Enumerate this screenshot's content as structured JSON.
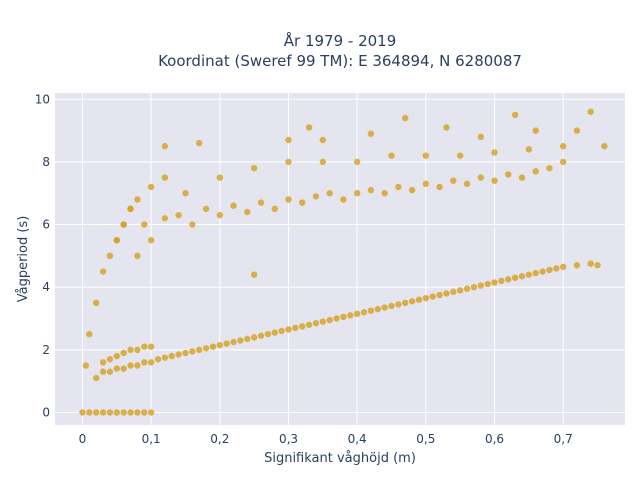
{
  "chart_data": {
    "type": "scatter",
    "title": "År 1979 - 2019",
    "subtitle": "Koordinat (Sweref 99 TM): E 364894, N 6280087",
    "xlabel": "Signifikant våghöjd (m)",
    "ylabel": "Vågperiod (s)",
    "xlim": [
      -0.04,
      0.79
    ],
    "ylim": [
      -0.4,
      10.2
    ],
    "x_ticks": [
      "0",
      "0,1",
      "0,2",
      "0,3",
      "0,4",
      "0,5",
      "0,6",
      "0,7"
    ],
    "x_tick_values": [
      0,
      0.1,
      0.2,
      0.3,
      0.4,
      0.5,
      0.6,
      0.7
    ],
    "y_ticks": [
      "0",
      "2",
      "4",
      "6",
      "8",
      "10"
    ],
    "y_tick_values": [
      0,
      2,
      4,
      6,
      8,
      10
    ],
    "grid": true,
    "colors": {
      "marker": "#d4a020",
      "plot_bg": "#e5e5f0",
      "grid": "#ffffff",
      "text": "#2a3f5f"
    },
    "series": [
      {
        "marker_color": "#d4a020",
        "x": [
          0,
          0.01,
          0.02,
          0.03,
          0.04,
          0.05,
          0.06,
          0.07,
          0.08,
          0.09,
          0.1,
          0.02,
          0.03,
          0.03,
          0.04,
          0.04,
          0.05,
          0.05,
          0.06,
          0.06,
          0.07,
          0.07,
          0.08,
          0.08,
          0.09,
          0.09,
          0.1,
          0.1,
          0.11,
          0.12,
          0.13,
          0.14,
          0.15,
          0.16,
          0.17,
          0.18,
          0.19,
          0.2,
          0.21,
          0.22,
          0.23,
          0.24,
          0.25,
          0.26,
          0.27,
          0.28,
          0.29,
          0.3,
          0.31,
          0.32,
          0.33,
          0.34,
          0.35,
          0.36,
          0.37,
          0.38,
          0.39,
          0.4,
          0.41,
          0.42,
          0.43,
          0.44,
          0.45,
          0.46,
          0.47,
          0.48,
          0.49,
          0.5,
          0.51,
          0.52,
          0.53,
          0.54,
          0.55,
          0.56,
          0.57,
          0.58,
          0.59,
          0.6,
          0.61,
          0.62,
          0.63,
          0.64,
          0.65,
          0.66,
          0.67,
          0.68,
          0.69,
          0.7,
          0.72,
          0.74,
          0.75,
          0.05,
          0.06,
          0.07,
          0.08,
          0.09,
          0.1,
          0.12,
          0.14,
          0.16,
          0.18,
          0.2,
          0.22,
          0.24,
          0.26,
          0.28,
          0.3,
          0.32,
          0.34,
          0.36,
          0.38,
          0.4,
          0.42,
          0.44,
          0.46,
          0.48,
          0.5,
          0.52,
          0.54,
          0.56,
          0.58,
          0.6,
          0.62,
          0.64,
          0.66,
          0.68,
          0.7,
          0.005,
          0.01,
          0.02,
          0.03,
          0.04,
          0.05,
          0.06,
          0.07,
          0.08,
          0.1,
          0.12,
          0.15,
          0.2,
          0.25,
          0.3,
          0.35,
          0.4,
          0.45,
          0.5,
          0.55,
          0.6,
          0.65,
          0.7,
          0.12,
          0.17,
          0.25,
          0.3,
          0.33,
          0.42,
          0.47,
          0.53,
          0.58,
          0.63,
          0.66,
          0.72,
          0.74,
          0.76,
          0.35
        ],
        "y": [
          0,
          0,
          0,
          0,
          0,
          0,
          0,
          0,
          0,
          0,
          0,
          1.1,
          1.3,
          1.6,
          1.3,
          1.7,
          1.4,
          1.8,
          1.4,
          1.9,
          1.5,
          2.0,
          1.5,
          2.0,
          1.6,
          2.1,
          1.6,
          2.1,
          1.7,
          1.75,
          1.8,
          1.85,
          1.9,
          1.95,
          2.0,
          2.05,
          2.1,
          2.15,
          2.2,
          2.25,
          2.3,
          2.35,
          2.4,
          2.45,
          2.5,
          2.55,
          2.6,
          2.65,
          2.7,
          2.75,
          2.8,
          2.85,
          2.9,
          2.95,
          3.0,
          3.05,
          3.1,
          3.15,
          3.2,
          3.25,
          3.3,
          3.35,
          3.4,
          3.45,
          3.5,
          3.55,
          3.6,
          3.65,
          3.7,
          3.75,
          3.8,
          3.85,
          3.9,
          3.95,
          4.0,
          4.05,
          4.1,
          4.15,
          4.2,
          4.25,
          4.3,
          4.35,
          4.4,
          4.45,
          4.5,
          4.55,
          4.6,
          4.65,
          4.7,
          4.75,
          4.7,
          5.5,
          6.0,
          6.5,
          6.8,
          6.0,
          5.5,
          6.2,
          6.3,
          6.0,
          6.5,
          6.3,
          6.6,
          6.4,
          6.7,
          6.5,
          6.8,
          6.7,
          6.9,
          7.0,
          6.8,
          7.0,
          7.1,
          7.0,
          7.2,
          7.1,
          7.3,
          7.2,
          7.4,
          7.3,
          7.5,
          7.4,
          7.6,
          7.5,
          7.7,
          7.8,
          8.0,
          1.5,
          2.5,
          3.5,
          4.5,
          5.0,
          5.5,
          6.0,
          6.5,
          5.0,
          7.2,
          7.5,
          7.0,
          7.5,
          7.8,
          8.0,
          8.0,
          8.0,
          8.2,
          8.2,
          8.2,
          8.3,
          8.4,
          8.5,
          8.5,
          8.6,
          4.4,
          8.7,
          9.1,
          8.9,
          9.4,
          9.1,
          8.8,
          9.5,
          9.0,
          9.0,
          9.6,
          8.5,
          8.7
        ]
      }
    ]
  }
}
